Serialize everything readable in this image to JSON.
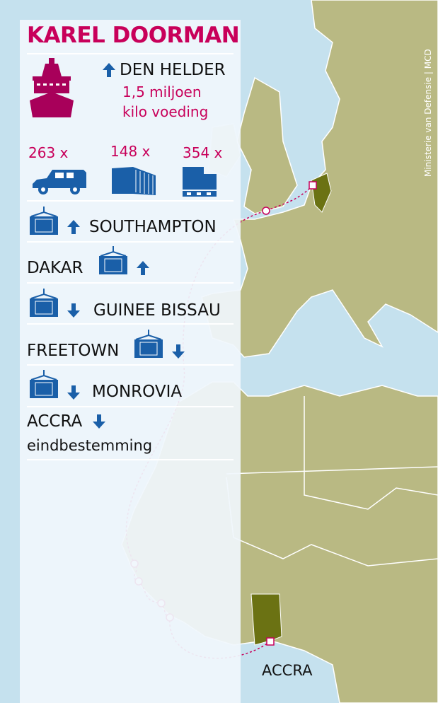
{
  "title": "KAREL DOORMAN",
  "origin": {
    "label": "DEN HELDER",
    "direction": "up",
    "cargo": [
      "1,5 miljoen",
      "kilo voeding"
    ]
  },
  "cargo_counts": [
    {
      "count": "263 x",
      "icon": "vehicle-icon"
    },
    {
      "count": "148 x",
      "icon": "shipping-container-icon"
    },
    {
      "count": "354 x",
      "icon": "pallet-icon"
    }
  ],
  "stops": [
    {
      "label": "SOUTHAMPTON",
      "direction": "up"
    },
    {
      "label": "DAKAR",
      "direction": "up"
    },
    {
      "label": "GUINEE BISSAU",
      "direction": "down"
    },
    {
      "label": "FREETOWN",
      "direction": "down"
    },
    {
      "label": "MONROVIA",
      "direction": "down"
    },
    {
      "label": "ACCRA",
      "direction": "down",
      "note": "eindbestemming"
    }
  ],
  "map_label": "ACCRA",
  "credit": "Ministerie van Defensie | MCD",
  "colors": {
    "sea": "#c5e1ee",
    "land": "#b9b983",
    "highlight": "#6b7213",
    "accent": "#c8005a",
    "icon": "#1a5fa8"
  }
}
